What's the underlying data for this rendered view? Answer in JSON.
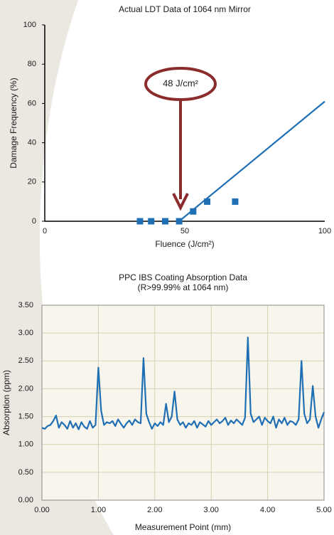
{
  "chart_data": [
    {
      "type": "scatter",
      "title": "Actual LDT Data of 1064 nm Mirror",
      "x_label": "Fluence (J/cm²)",
      "y_label": "Damage Frequency (%)",
      "x": [
        34,
        38,
        43,
        48,
        53,
        58,
        68
      ],
      "values": [
        0,
        0,
        0,
        0,
        5,
        10,
        10
      ],
      "color": "#1f6fb5",
      "fit_line": {
        "x": [
          48,
          100
        ],
        "values": [
          0,
          61
        ]
      },
      "annotation": "48 J/cm²",
      "xlim": [
        0,
        100
      ],
      "xticks": [
        0,
        50,
        100
      ],
      "ylim": [
        0,
        100
      ],
      "yticks": [
        0,
        20,
        40,
        60,
        80,
        100
      ],
      "grid": false
    },
    {
      "type": "line",
      "title": "PPC IBS Coating Absorption Data",
      "subtitle": "(R>99.99% at 1064 nm)",
      "x_label": "Measurement Point (mm)",
      "y_label": "Absorption (ppm)",
      "x": [
        0,
        0.05,
        0.1,
        0.15,
        0.2,
        0.25,
        0.3,
        0.35,
        0.4,
        0.45,
        0.5,
        0.55,
        0.6,
        0.65,
        0.7,
        0.75,
        0.8,
        0.85,
        0.9,
        0.95,
        1,
        1.05,
        1.1,
        1.15,
        1.2,
        1.25,
        1.3,
        1.35,
        1.4,
        1.45,
        1.5,
        1.55,
        1.6,
        1.65,
        1.7,
        1.75,
        1.8,
        1.85,
        1.9,
        1.95,
        2,
        2.05,
        2.1,
        2.15,
        2.2,
        2.25,
        2.3,
        2.35,
        2.4,
        2.45,
        2.5,
        2.55,
        2.6,
        2.65,
        2.7,
        2.75,
        2.8,
        2.85,
        2.9,
        2.95,
        3,
        3.05,
        3.1,
        3.15,
        3.2,
        3.25,
        3.3,
        3.35,
        3.4,
        3.45,
        3.5,
        3.55,
        3.6,
        3.65,
        3.7,
        3.75,
        3.8,
        3.85,
        3.9,
        3.95,
        4,
        4.05,
        4.1,
        4.15,
        4.2,
        4.25,
        4.3,
        4.35,
        4.4,
        4.45,
        4.5,
        4.55,
        4.6,
        4.65,
        4.7,
        4.75,
        4.8,
        4.85,
        4.9,
        4.95,
        5
      ],
      "values": [
        1.3,
        1.28,
        1.33,
        1.35,
        1.42,
        1.52,
        1.3,
        1.4,
        1.35,
        1.28,
        1.42,
        1.3,
        1.38,
        1.27,
        1.4,
        1.32,
        1.28,
        1.42,
        1.3,
        1.35,
        2.38,
        1.6,
        1.35,
        1.4,
        1.38,
        1.42,
        1.33,
        1.45,
        1.37,
        1.3,
        1.38,
        1.43,
        1.35,
        1.45,
        1.4,
        1.38,
        2.55,
        1.55,
        1.4,
        1.28,
        1.38,
        1.33,
        1.4,
        1.35,
        1.73,
        1.4,
        1.5,
        1.95,
        1.45,
        1.35,
        1.4,
        1.3,
        1.38,
        1.35,
        1.42,
        1.3,
        1.4,
        1.36,
        1.32,
        1.42,
        1.35,
        1.4,
        1.45,
        1.38,
        1.42,
        1.48,
        1.35,
        1.43,
        1.38,
        1.45,
        1.4,
        1.35,
        1.48,
        2.92,
        1.55,
        1.4,
        1.45,
        1.5,
        1.35,
        1.48,
        1.42,
        1.38,
        1.5,
        1.3,
        1.45,
        1.38,
        1.48,
        1.35,
        1.42,
        1.4,
        1.35,
        1.45,
        2.5,
        1.55,
        1.38,
        1.45,
        2.05,
        1.5,
        1.3,
        1.45,
        1.58
      ],
      "color": "#1f6fb5",
      "xlim": [
        0,
        5
      ],
      "xticks": [
        {
          "value": 0,
          "label": "0.00"
        },
        {
          "value": 1,
          "label": "1.00"
        },
        {
          "value": 2,
          "label": "2.00"
        },
        {
          "value": 3,
          "label": "3.00"
        },
        {
          "value": 4,
          "label": "4.00"
        },
        {
          "value": 5,
          "label": "5.00"
        }
      ],
      "ylim": [
        0,
        3.5
      ],
      "yticks": [
        {
          "value": 0,
          "label": "0.00"
        },
        {
          "value": 0.5,
          "label": "0.50"
        },
        {
          "value": 1,
          "label": "1.00"
        },
        {
          "value": 1.5,
          "label": "1.50"
        },
        {
          "value": 2,
          "label": "2.00"
        },
        {
          "value": 2.5,
          "label": "2.50"
        },
        {
          "value": 3,
          "label": "3.00"
        },
        {
          "value": 3.5,
          "label": "3.50"
        }
      ],
      "grid": true
    }
  ]
}
